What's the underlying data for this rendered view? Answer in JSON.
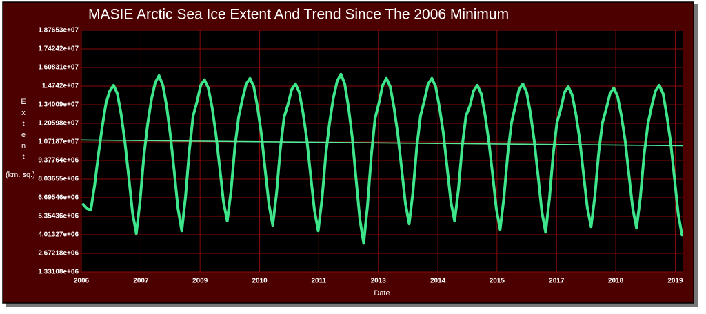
{
  "chart_data": {
    "type": "line",
    "title": "MASIE Arctic Sea Ice Extent And Trend Since The 2006 Minimum",
    "xlabel": "Date",
    "ylabel": "Extent",
    "ylabel_units": "(km. sq.)",
    "xlim": [
      2006.5,
      2019.72
    ],
    "xticks": [
      {
        "value": 2006.5,
        "label": "2006"
      },
      {
        "value": 2007.81,
        "label": "2007"
      },
      {
        "value": 2009.11,
        "label": "2009"
      },
      {
        "value": 2010.42,
        "label": "2010"
      },
      {
        "value": 2011.72,
        "label": "2011"
      },
      {
        "value": 2013.03,
        "label": "2013"
      },
      {
        "value": 2014.34,
        "label": "2014"
      },
      {
        "value": 2015.64,
        "label": "2015"
      },
      {
        "value": 2016.95,
        "label": "2017"
      },
      {
        "value": 2018.25,
        "label": "2018"
      },
      {
        "value": 2019.56,
        "label": "2019"
      }
    ],
    "ylim": [
      1331080,
      18765300
    ],
    "yticks": [
      {
        "value": 1331080,
        "label": "1.33108e+06"
      },
      {
        "value": 2672180,
        "label": "2.67218e+06"
      },
      {
        "value": 4013270,
        "label": "4.01327e+06"
      },
      {
        "value": 5354360,
        "label": "5.35436e+06"
      },
      {
        "value": 6695460,
        "label": "6.69546e+06"
      },
      {
        "value": 8036550,
        "label": "8.03655e+06"
      },
      {
        "value": 9377640,
        "label": "9.37764e+06"
      },
      {
        "value": 10718700,
        "label": "1.07187e+07"
      },
      {
        "value": 12059800,
        "label": "1.20598e+07"
      },
      {
        "value": 13400900,
        "label": "1.34009e+07"
      },
      {
        "value": 14742000,
        "label": "1.4742e+07"
      },
      {
        "value": 16083100,
        "label": "1.60831e+07"
      },
      {
        "value": 17424200,
        "label": "1.74242e+07"
      },
      {
        "value": 18765300,
        "label": "1.87653e+07"
      }
    ],
    "grid": true,
    "series": [
      {
        "color": "#3fe58a",
        "width": 4,
        "x": [
          2006.542,
          2006.625,
          2006.708,
          2006.792,
          2006.875,
          2006.958,
          2007.042,
          2007.125,
          2007.208,
          2007.292,
          2007.375,
          2007.458,
          2007.542,
          2007.625,
          2007.708,
          2007.792,
          2007.875,
          2007.958,
          2008.042,
          2008.125,
          2008.208,
          2008.292,
          2008.375,
          2008.458,
          2008.542,
          2008.625,
          2008.708,
          2008.792,
          2008.875,
          2008.958,
          2009.042,
          2009.125,
          2009.208,
          2009.292,
          2009.375,
          2009.458,
          2009.542,
          2009.625,
          2009.708,
          2009.792,
          2009.875,
          2009.958,
          2010.042,
          2010.125,
          2010.208,
          2010.292,
          2010.375,
          2010.458,
          2010.542,
          2010.625,
          2010.708,
          2010.792,
          2010.875,
          2010.958,
          2011.042,
          2011.125,
          2011.208,
          2011.292,
          2011.375,
          2011.458,
          2011.542,
          2011.625,
          2011.708,
          2011.792,
          2011.875,
          2011.958,
          2012.042,
          2012.125,
          2012.208,
          2012.292,
          2012.375,
          2012.458,
          2012.542,
          2012.625,
          2012.708,
          2012.792,
          2012.875,
          2012.958,
          2013.042,
          2013.125,
          2013.208,
          2013.292,
          2013.375,
          2013.458,
          2013.542,
          2013.625,
          2013.708,
          2013.792,
          2013.875,
          2013.958,
          2014.042,
          2014.125,
          2014.208,
          2014.292,
          2014.375,
          2014.458,
          2014.542,
          2014.625,
          2014.708,
          2014.792,
          2014.875,
          2014.958,
          2015.042,
          2015.125,
          2015.208,
          2015.292,
          2015.375,
          2015.458,
          2015.542,
          2015.625,
          2015.708,
          2015.792,
          2015.875,
          2015.958,
          2016.042,
          2016.125,
          2016.208,
          2016.292,
          2016.375,
          2016.458,
          2016.542,
          2016.625,
          2016.708,
          2016.792,
          2016.875,
          2016.958,
          2017.042,
          2017.125,
          2017.208,
          2017.292,
          2017.375,
          2017.458,
          2017.542,
          2017.625,
          2017.708,
          2017.792,
          2017.875,
          2017.958,
          2018.042,
          2018.125,
          2018.208,
          2018.292,
          2018.375,
          2018.458,
          2018.542,
          2018.625,
          2018.708,
          2018.792,
          2018.875,
          2018.958,
          2019.042,
          2019.125,
          2019.208,
          2019.292,
          2019.375,
          2019.458,
          2019.542,
          2019.625,
          2019.708
        ],
        "values": [
          6200000,
          5900000,
          5800000,
          7600000,
          9800000,
          11800000,
          13500000,
          14400000,
          14800000,
          14200000,
          12700000,
          10700000,
          8200000,
          5600000,
          4100000,
          6500000,
          9700000,
          12000000,
          13800000,
          15000000,
          15500000,
          14800000,
          13300000,
          11200000,
          8600000,
          5900000,
          4300000,
          6800000,
          10100000,
          12600000,
          13600000,
          14800000,
          15200000,
          14600000,
          13200000,
          11300000,
          8900000,
          6400000,
          5000000,
          7200000,
          10300000,
          12500000,
          13800000,
          14900000,
          15300000,
          14700000,
          13200000,
          11300000,
          8700000,
          6200000,
          4700000,
          7000000,
          10200000,
          12500000,
          13400000,
          14500000,
          14900000,
          14300000,
          12800000,
          10900000,
          8300000,
          5800000,
          4300000,
          6600000,
          9800000,
          12100000,
          13900000,
          15100000,
          15600000,
          14900000,
          13200000,
          11000000,
          8000000,
          5100000,
          3400000,
          6100000,
          9700000,
          12400000,
          13500000,
          14800000,
          15300000,
          14700000,
          13200000,
          11300000,
          8800000,
          6300000,
          4800000,
          7100000,
          10300000,
          12600000,
          13700000,
          14900000,
          15300000,
          14700000,
          13200000,
          11400000,
          8900000,
          6400000,
          5000000,
          7300000,
          10400000,
          12600000,
          13300000,
          14400000,
          14800000,
          14200000,
          12700000,
          10800000,
          8400000,
          5900000,
          4400000,
          6700000,
          9800000,
          12100000,
          13300000,
          14500000,
          14900000,
          14300000,
          12800000,
          10800000,
          8300000,
          5700000,
          4200000,
          6600000,
          9800000,
          12100000,
          13100000,
          14300000,
          14700000,
          14100000,
          12700000,
          10900000,
          8400000,
          6000000,
          4600000,
          6800000,
          9900000,
          12100000,
          13100000,
          14200000,
          14600000,
          14000000,
          12600000,
          10800000,
          8300000,
          5900000,
          4500000,
          6700000,
          9800000,
          12000000,
          13300000,
          14400000,
          14800000,
          14200000,
          12600000,
          10700000,
          8100000,
          5500000,
          4000000
        ]
      },
      {
        "color": "#56ea98",
        "width": 1.6,
        "x": [
          2006.5,
          2019.72
        ],
        "values": [
          10850000,
          10450000
        ]
      }
    ]
  }
}
